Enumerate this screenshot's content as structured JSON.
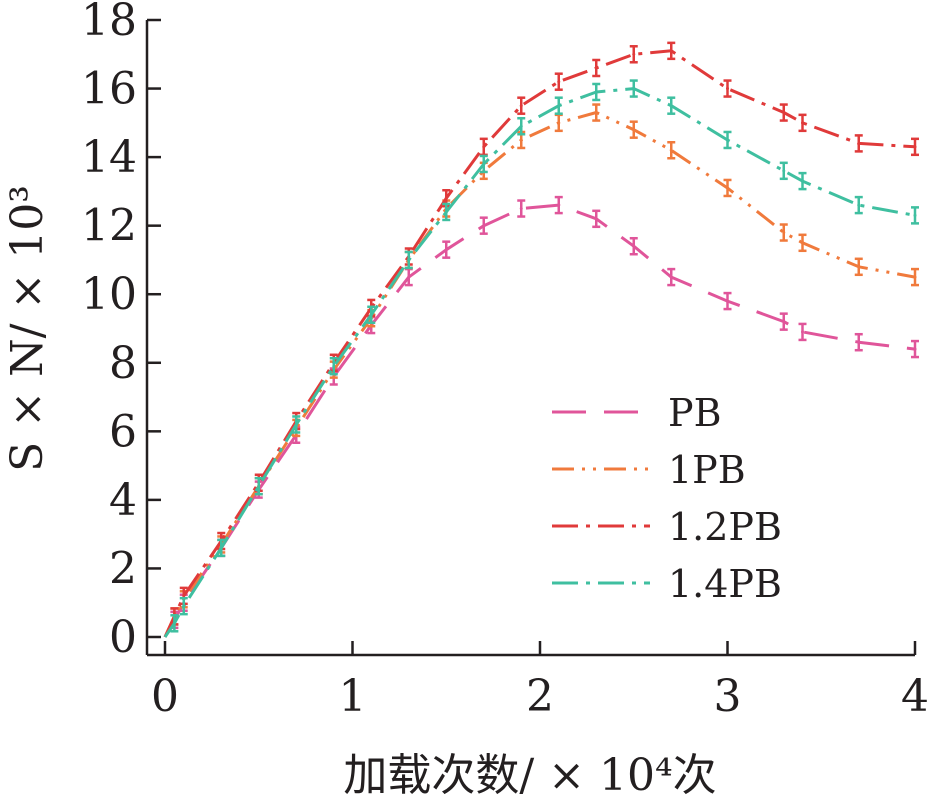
{
  "chart_data": {
    "type": "line",
    "xlabel": "加载次数/ × 10⁴次",
    "ylabel": "S × N/ × 10³",
    "xlim": [
      0,
      4
    ],
    "ylim": [
      0,
      18
    ],
    "xticks": [
      "0",
      "1",
      "2",
      "3",
      "4"
    ],
    "yticks": [
      "0",
      "2",
      "4",
      "6",
      "8",
      "10",
      "12",
      "14",
      "16",
      "18"
    ],
    "grid": false,
    "legend_position": "lower-right",
    "series": [
      {
        "name": "PB",
        "color": "#e0559a",
        "dash": "long-dash",
        "x": [
          0,
          0.05,
          0.1,
          0.3,
          0.5,
          0.7,
          0.9,
          1.1,
          1.3,
          1.5,
          1.7,
          1.9,
          2.1,
          2.3,
          2.5,
          2.7,
          3.0,
          3.3,
          3.4,
          3.7,
          4.0
        ],
        "y": [
          0,
          0.5,
          1.0,
          2.6,
          4.3,
          5.9,
          7.6,
          9.1,
          10.5,
          11.3,
          12.0,
          12.5,
          12.6,
          12.2,
          11.4,
          10.5,
          9.8,
          9.2,
          8.9,
          8.6,
          8.4
        ]
      },
      {
        "name": "1PB",
        "color": "#f07a3c",
        "dash": "dash-dot-dot",
        "x": [
          0,
          0.05,
          0.1,
          0.3,
          0.5,
          0.7,
          0.9,
          1.1,
          1.3,
          1.5,
          1.7,
          1.9,
          2.1,
          2.3,
          2.5,
          2.7,
          3.0,
          3.3,
          3.4,
          3.7,
          4.0
        ],
        "y": [
          0,
          0.6,
          1.1,
          2.7,
          4.4,
          6.1,
          7.8,
          9.3,
          11.0,
          12.5,
          13.6,
          14.5,
          15.0,
          15.3,
          14.8,
          14.2,
          13.1,
          11.8,
          11.5,
          10.8,
          10.5
        ]
      },
      {
        "name": "1.2PB",
        "color": "#e03a3a",
        "dash": "dash-dot",
        "x": [
          0,
          0.05,
          0.1,
          0.3,
          0.5,
          0.7,
          0.9,
          1.1,
          1.3,
          1.5,
          1.7,
          1.9,
          2.1,
          2.3,
          2.5,
          2.7,
          3.0,
          3.3,
          3.4,
          3.7,
          4.0
        ],
        "y": [
          0,
          0.6,
          1.2,
          2.8,
          4.5,
          6.3,
          8.0,
          9.6,
          11.1,
          12.8,
          14.3,
          15.5,
          16.2,
          16.6,
          17.0,
          17.1,
          16.0,
          15.3,
          15.0,
          14.4,
          14.3
        ]
      },
      {
        "name": "1.4PB",
        "color": "#3fbfa0",
        "dash": "dash-dot",
        "x": [
          0,
          0.05,
          0.1,
          0.3,
          0.5,
          0.7,
          0.9,
          1.1,
          1.3,
          1.5,
          1.7,
          1.9,
          2.1,
          2.3,
          2.5,
          2.7,
          3.0,
          3.3,
          3.4,
          3.7,
          4.0
        ],
        "y": [
          0,
          0.4,
          0.9,
          2.6,
          4.4,
          6.2,
          7.9,
          9.4,
          11.0,
          12.4,
          13.8,
          14.9,
          15.5,
          15.9,
          16.0,
          15.5,
          14.5,
          13.6,
          13.3,
          12.6,
          12.3
        ]
      }
    ]
  }
}
